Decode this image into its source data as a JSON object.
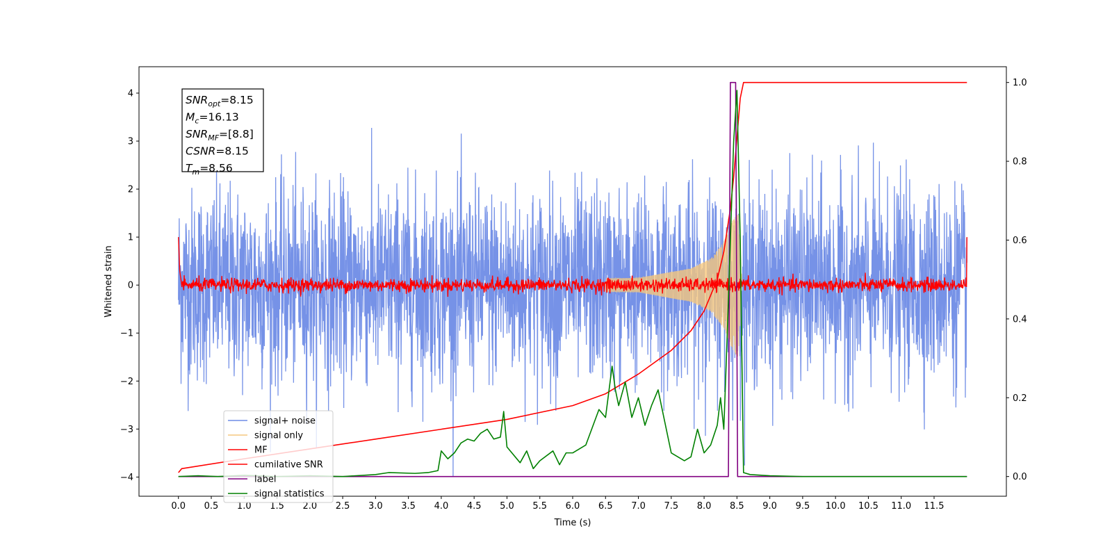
{
  "chart_data": {
    "type": "line",
    "xlabel": "Time (s)",
    "ylabel": "Whitened strain",
    "xlim": [
      -0.6,
      12.6
    ],
    "ylim": [
      -4.4,
      4.55
    ],
    "y2lim": [
      -0.05,
      1.04
    ],
    "x_ticks": [
      0.0,
      0.5,
      1.0,
      1.5,
      2.0,
      2.5,
      3.0,
      3.5,
      4.0,
      4.5,
      5.0,
      5.5,
      6.0,
      6.5,
      7.0,
      7.5,
      8.0,
      8.5,
      9.0,
      9.5,
      10.0,
      10.5,
      11.0,
      11.5
    ],
    "x_tick_labels": [
      "0.0",
      "0.5",
      "1.0",
      "1.5",
      "2.0",
      "2.5",
      "3.0",
      "3.5",
      "4.0",
      "4.5",
      "5.0",
      "5.5",
      "6.0",
      "6.5",
      "7.0",
      "7.5",
      "8.0",
      "8.5",
      "9.0",
      "9.5",
      "10.0",
      "10.5",
      "11.0",
      "11.5"
    ],
    "y_ticks": [
      4,
      3,
      2,
      1,
      0,
      -1,
      -2,
      -3,
      -4
    ],
    "y_tick_labels": [
      "4",
      "3",
      "2",
      "1",
      "0",
      "−1",
      "−2",
      "−3",
      "−4"
    ],
    "y2_ticks": [
      1.0,
      0.8,
      0.6,
      0.4,
      0.2,
      0.0
    ],
    "y2_tick_labels": [
      "1.0",
      "0.8",
      "0.6",
      "0.4",
      "0.2",
      "0.0"
    ],
    "grid": false,
    "legend_position": "lower-left",
    "annotation": {
      "position": "top-left",
      "lines": [
        {
          "sym": "SNR",
          "sub": "opt",
          "val": "=8.15"
        },
        {
          "sym": "M",
          "sub": "c",
          "val": "=16.13"
        },
        {
          "sym": "SNR",
          "sub": "MF",
          "val": "=[8.8]"
        },
        {
          "sym": "CSNR",
          "sub": "",
          "val": "=8.15"
        },
        {
          "sym": "T",
          "sub": "m",
          "val": "=8.56"
        }
      ]
    },
    "series": [
      {
        "name": "signal+ noise",
        "color": "#6f8ce6",
        "axis": "left",
        "noise_amplitude_std": 1.0,
        "envelope_band": [
          -2.6,
          3.4
        ]
      },
      {
        "name": "signal only",
        "color": "#f5c77e",
        "axis": "left",
        "chirp_peak_time": 8.5,
        "chirp_envelope": {
          "x": [
            0.0,
            7.0,
            7.8,
            8.1,
            8.3,
            8.45,
            8.52,
            8.58
          ],
          "y": [
            0.02,
            0.15,
            0.35,
            0.55,
            0.9,
            1.4,
            1.5,
            0.0
          ]
        }
      },
      {
        "name": "MF",
        "color": "#ff0000",
        "axis": "left",
        "x": [
          0.0,
          0.02,
          0.05,
          12.0
        ],
        "y": [
          1.0,
          0.3,
          0.0,
          0.0
        ],
        "noise_amplitude": 0.12,
        "end_y": 1.0
      },
      {
        "name": "cumilative SNR",
        "color": "#ff0000",
        "axis": "right",
        "x": [
          0.0,
          0.05,
          1.0,
          2.0,
          3.0,
          4.0,
          5.0,
          6.0,
          6.5,
          7.0,
          7.5,
          7.8,
          8.0,
          8.2,
          8.3,
          8.4,
          8.45,
          8.5,
          8.55,
          8.6,
          12.0
        ],
        "y": [
          0.01,
          0.02,
          0.045,
          0.07,
          0.095,
          0.12,
          0.145,
          0.18,
          0.21,
          0.26,
          0.32,
          0.37,
          0.42,
          0.5,
          0.57,
          0.68,
          0.76,
          0.86,
          0.96,
          1.0,
          1.0
        ]
      },
      {
        "name": "label",
        "color": "#800080",
        "axis": "right",
        "x": [
          0.0,
          8.37,
          8.4,
          8.48,
          8.51,
          12.0
        ],
        "y": [
          0.0,
          0.0,
          1.0,
          1.0,
          0.0,
          0.0
        ]
      },
      {
        "name": "signal statistics",
        "color": "#008000",
        "axis": "right",
        "x": [
          0.0,
          0.3,
          0.6,
          1.0,
          1.5,
          2.0,
          2.5,
          3.0,
          3.2,
          3.6,
          3.8,
          3.95,
          4.0,
          4.1,
          4.2,
          4.3,
          4.4,
          4.5,
          4.6,
          4.7,
          4.8,
          4.9,
          4.95,
          5.0,
          5.2,
          5.3,
          5.4,
          5.5,
          5.7,
          5.8,
          5.9,
          6.0,
          6.2,
          6.4,
          6.5,
          6.6,
          6.65,
          6.7,
          6.8,
          6.9,
          7.0,
          7.1,
          7.2,
          7.3,
          7.4,
          7.5,
          7.7,
          7.8,
          7.9,
          8.0,
          8.1,
          8.2,
          8.25,
          8.3,
          8.35,
          8.4,
          8.45,
          8.5,
          8.55,
          8.6,
          8.7,
          9.0,
          9.5,
          10.0,
          12.0
        ],
        "y": [
          0.0,
          0.002,
          0.0,
          0.003,
          0.0,
          0.002,
          0.0,
          0.005,
          0.01,
          0.008,
          0.01,
          0.015,
          0.065,
          0.045,
          0.06,
          0.085,
          0.095,
          0.09,
          0.11,
          0.12,
          0.095,
          0.1,
          0.165,
          0.075,
          0.035,
          0.065,
          0.02,
          0.04,
          0.065,
          0.03,
          0.06,
          0.06,
          0.08,
          0.17,
          0.15,
          0.28,
          0.22,
          0.18,
          0.24,
          0.15,
          0.2,
          0.13,
          0.18,
          0.22,
          0.14,
          0.06,
          0.04,
          0.05,
          0.12,
          0.06,
          0.08,
          0.13,
          0.2,
          0.12,
          0.35,
          0.6,
          0.85,
          0.98,
          0.6,
          0.01,
          0.005,
          0.002,
          0.0,
          0.0,
          0.0
        ]
      }
    ]
  }
}
